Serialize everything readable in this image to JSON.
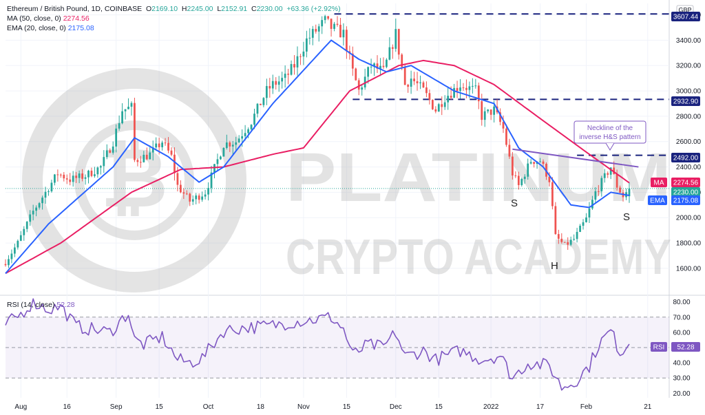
{
  "header": {
    "symbol": "Ethereum / British Pound, 1D, COINBASE",
    "o_label": "O",
    "o": "2169.10",
    "h_label": "H",
    "h": "2245.00",
    "l_label": "L",
    "l": "2152.91",
    "c_label": "C",
    "c": "2230.00",
    "change": "+63.36 (+2.92%)",
    "ma_text": "MA (50, close, 0)",
    "ma_value": "2274.56",
    "ema_text": "EMA (20, close, 0)",
    "ema_value": "2175.08",
    "rsi_text": "RSI (14, close)",
    "rsi_value": "52.28"
  },
  "watermark": {
    "line1": "PLATINUM",
    "line2": "CRYPTO ACADEMY"
  },
  "currency": "GBP",
  "annotation": {
    "line1": "Neckline of the",
    "line2": "inverse H&S pattern"
  },
  "pattern_labels": {
    "left_shoulder": "S",
    "head": "H",
    "right_shoulder": "S"
  },
  "tags": {
    "level_high": "3607.44",
    "level_mid": "2932.90",
    "level_low": "2492.00",
    "ma_label": "MA",
    "ma": "2274.56",
    "price": "2230.00",
    "ema_label": "EMA",
    "ema": "2175.08",
    "rsi_label": "RSI",
    "rsi": "52.28"
  },
  "colors": {
    "up": "#26a69a",
    "down": "#ef5350",
    "ma": "#e91e63",
    "ema": "#2962ff",
    "rsi": "#7e57c2",
    "neckline": "#7e57c2",
    "level": "#1a237e"
  },
  "chart_data": {
    "type": "candlestick",
    "title": "Ethereum / British Pound, 1D, COINBASE",
    "currency": "GBP",
    "x_ticks": [
      "Aug",
      "16",
      "Sep",
      "15",
      "Oct",
      "18",
      "Nov",
      "15",
      "Dec",
      "15",
      "2022",
      "17",
      "Feb",
      "21"
    ],
    "y_ticks": [
      "3600.00",
      "3400.00",
      "3200.00",
      "3000.00",
      "2800.00",
      "2600.00",
      "2400.00",
      "2200.00",
      "2000.00",
      "1800.00",
      "1600.00"
    ],
    "y_tick_values": [
      3600,
      3400,
      3200,
      3000,
      2800,
      2600,
      2400,
      2200,
      2000,
      1800,
      1600
    ],
    "ylim": [
      1480,
      3690
    ],
    "horizontal_levels": [
      3607.44,
      2932.9,
      2492.0
    ],
    "last_close": 2230.0,
    "close_keypoints": [
      {
        "date": "2021-07-27",
        "close": 1650
      },
      {
        "date": "2021-07-31",
        "close": 1800
      },
      {
        "date": "2021-08-05",
        "close": 2050
      },
      {
        "date": "2021-08-13",
        "close": 2350
      },
      {
        "date": "2021-08-17",
        "close": 2300
      },
      {
        "date": "2021-08-22",
        "close": 2330
      },
      {
        "date": "2021-08-27",
        "close": 2400
      },
      {
        "date": "2021-08-31",
        "close": 2600
      },
      {
        "date": "2021-09-03",
        "close": 2850
      },
      {
        "date": "2021-09-06",
        "close": 2870
      },
      {
        "date": "2021-09-07",
        "close": 2450
      },
      {
        "date": "2021-09-12",
        "close": 2500
      },
      {
        "date": "2021-09-16",
        "close": 2600
      },
      {
        "date": "2021-09-19",
        "close": 2480
      },
      {
        "date": "2021-09-21",
        "close": 2250
      },
      {
        "date": "2021-09-25",
        "close": 2130
      },
      {
        "date": "2021-09-30",
        "close": 2200
      },
      {
        "date": "2021-10-06",
        "close": 2580
      },
      {
        "date": "2021-10-10",
        "close": 2600
      },
      {
        "date": "2021-10-15",
        "close": 2760
      },
      {
        "date": "2021-10-20",
        "close": 3000
      },
      {
        "date": "2021-10-22",
        "close": 3050
      },
      {
        "date": "2021-10-26",
        "close": 3100
      },
      {
        "date": "2021-10-29",
        "close": 3200
      },
      {
        "date": "2021-11-02",
        "close": 3400
      },
      {
        "date": "2021-11-08",
        "close": 3550
      },
      {
        "date": "2021-11-10",
        "close": 3500
      },
      {
        "date": "2021-11-14",
        "close": 3450
      },
      {
        "date": "2021-11-17",
        "close": 3150
      },
      {
        "date": "2021-11-19",
        "close": 3000
      },
      {
        "date": "2021-11-23",
        "close": 3200
      },
      {
        "date": "2021-11-27",
        "close": 3150
      },
      {
        "date": "2021-12-01",
        "close": 3450
      },
      {
        "date": "2021-12-04",
        "close": 3050
      },
      {
        "date": "2021-12-06",
        "close": 3100
      },
      {
        "date": "2021-12-10",
        "close": 3000
      },
      {
        "date": "2021-12-14",
        "close": 2850
      },
      {
        "date": "2021-12-17",
        "close": 2950
      },
      {
        "date": "2021-12-22",
        "close": 3050
      },
      {
        "date": "2021-12-27",
        "close": 3000
      },
      {
        "date": "2021-12-29",
        "close": 2800
      },
      {
        "date": "2022-01-02",
        "close": 2850
      },
      {
        "date": "2022-01-05",
        "close": 2700
      },
      {
        "date": "2022-01-08",
        "close": 2350
      },
      {
        "date": "2022-01-10",
        "close": 2250
      },
      {
        "date": "2022-01-14",
        "close": 2450
      },
      {
        "date": "2022-01-17",
        "close": 2450
      },
      {
        "date": "2022-01-20",
        "close": 2300
      },
      {
        "date": "2022-01-22",
        "close": 1850
      },
      {
        "date": "2022-01-25",
        "close": 1780
      },
      {
        "date": "2022-01-28",
        "close": 1830
      },
      {
        "date": "2022-02-01",
        "close": 1990
      },
      {
        "date": "2022-02-04",
        "close": 2200
      },
      {
        "date": "2022-02-07",
        "close": 2320
      },
      {
        "date": "2022-02-09",
        "close": 2400
      },
      {
        "date": "2022-02-11",
        "close": 2250
      },
      {
        "date": "2022-02-13",
        "close": 2170
      },
      {
        "date": "2022-02-15",
        "close": 2230
      }
    ],
    "ma50_keypoints": [
      {
        "date": "2021-07-27",
        "close": 1560
      },
      {
        "date": "2021-08-14",
        "close": 1800
      },
      {
        "date": "2021-09-06",
        "close": 2200
      },
      {
        "date": "2021-09-22",
        "close": 2380
      },
      {
        "date": "2021-10-06",
        "close": 2400
      },
      {
        "date": "2021-10-22",
        "close": 2500
      },
      {
        "date": "2021-11-01",
        "close": 2550
      },
      {
        "date": "2021-11-16",
        "close": 3000
      },
      {
        "date": "2021-12-02",
        "close": 3200
      },
      {
        "date": "2021-12-10",
        "close": 3240
      },
      {
        "date": "2021-12-20",
        "close": 3200
      },
      {
        "date": "2022-01-02",
        "close": 3050
      },
      {
        "date": "2022-01-16",
        "close": 2800
      },
      {
        "date": "2022-02-02",
        "close": 2500
      },
      {
        "date": "2022-02-15",
        "close": 2275
      }
    ],
    "ema20_keypoints": [
      {
        "date": "2021-07-27",
        "close": 1560
      },
      {
        "date": "2021-08-10",
        "close": 1950
      },
      {
        "date": "2021-08-31",
        "close": 2400
      },
      {
        "date": "2021-09-07",
        "close": 2630
      },
      {
        "date": "2021-09-18",
        "close": 2480
      },
      {
        "date": "2021-09-28",
        "close": 2280
      },
      {
        "date": "2021-10-06",
        "close": 2400
      },
      {
        "date": "2021-10-22",
        "close": 2900
      },
      {
        "date": "2021-11-10",
        "close": 3400
      },
      {
        "date": "2021-11-19",
        "close": 3250
      },
      {
        "date": "2021-11-28",
        "close": 3150
      },
      {
        "date": "2021-12-06",
        "close": 3200
      },
      {
        "date": "2021-12-20",
        "close": 3000
      },
      {
        "date": "2022-01-02",
        "close": 2900
      },
      {
        "date": "2022-01-10",
        "close": 2550
      },
      {
        "date": "2022-01-18",
        "close": 2400
      },
      {
        "date": "2022-01-27",
        "close": 2100
      },
      {
        "date": "2022-02-02",
        "close": 2080
      },
      {
        "date": "2022-02-09",
        "close": 2200
      },
      {
        "date": "2022-02-15",
        "close": 2175
      }
    ],
    "neckline": [
      {
        "date": "2022-01-08",
        "price": 2540
      },
      {
        "date": "2022-02-18",
        "price": 2400
      }
    ],
    "rsi": {
      "title": "RSI (14, close)",
      "y_ticks": [
        "80.00",
        "70.00",
        "60.00",
        "50.00",
        "40.00",
        "30.00",
        "20.00"
      ],
      "y_tick_values": [
        80,
        70,
        60,
        50,
        40,
        30,
        20
      ],
      "ylim": [
        17,
        83
      ],
      "band": [
        30,
        70
      ],
      "last": 52.28,
      "keypoints": [
        {
          "date": "2021-07-27",
          "value": 65
        },
        {
          "date": "2021-08-01",
          "value": 72
        },
        {
          "date": "2021-08-05",
          "value": 80
        },
        {
          "date": "2021-08-10",
          "value": 75
        },
        {
          "date": "2021-08-14",
          "value": 77
        },
        {
          "date": "2021-08-19",
          "value": 64
        },
        {
          "date": "2021-08-24",
          "value": 62
        },
        {
          "date": "2021-08-30",
          "value": 60
        },
        {
          "date": "2021-09-05",
          "value": 73
        },
        {
          "date": "2021-09-07",
          "value": 55
        },
        {
          "date": "2021-09-10",
          "value": 52
        },
        {
          "date": "2021-09-16",
          "value": 57
        },
        {
          "date": "2021-09-21",
          "value": 42
        },
        {
          "date": "2021-09-25",
          "value": 40
        },
        {
          "date": "2021-09-29",
          "value": 43
        },
        {
          "date": "2021-10-06",
          "value": 61
        },
        {
          "date": "2021-10-12",
          "value": 63
        },
        {
          "date": "2021-10-20",
          "value": 64
        },
        {
          "date": "2021-10-29",
          "value": 67
        },
        {
          "date": "2021-11-03",
          "value": 68
        },
        {
          "date": "2021-11-10",
          "value": 70
        },
        {
          "date": "2021-11-14",
          "value": 62
        },
        {
          "date": "2021-11-17",
          "value": 45
        },
        {
          "date": "2021-11-22",
          "value": 52
        },
        {
          "date": "2021-11-27",
          "value": 50
        },
        {
          "date": "2021-12-01",
          "value": 60
        },
        {
          "date": "2021-12-04",
          "value": 44
        },
        {
          "date": "2021-12-10",
          "value": 48
        },
        {
          "date": "2021-12-14",
          "value": 42
        },
        {
          "date": "2021-12-22",
          "value": 48
        },
        {
          "date": "2021-12-29",
          "value": 42
        },
        {
          "date": "2022-01-04",
          "value": 45
        },
        {
          "date": "2022-01-08",
          "value": 30
        },
        {
          "date": "2022-01-13",
          "value": 40
        },
        {
          "date": "2022-01-20",
          "value": 38
        },
        {
          "date": "2022-01-24",
          "value": 24
        },
        {
          "date": "2022-01-28",
          "value": 27
        },
        {
          "date": "2022-02-02",
          "value": 38
        },
        {
          "date": "2022-02-05",
          "value": 52
        },
        {
          "date": "2022-02-09",
          "value": 61
        },
        {
          "date": "2022-02-12",
          "value": 47
        },
        {
          "date": "2022-02-15",
          "value": 52.28
        }
      ]
    }
  }
}
